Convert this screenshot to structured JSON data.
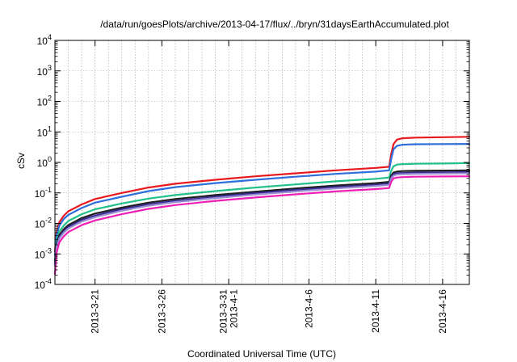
{
  "chart_data": {
    "type": "line",
    "title": "/data/run/goesPlots/archive/2013-04-17/flux/../bryn/31daysEarthAccumulated.plot",
    "xlabel": "Coordinated Universal Time (UTC)",
    "ylabel": "cSv",
    "y_scale": "log",
    "xlim": [
      "2013-03-18",
      "2013-04-18"
    ],
    "ylim": [
      0.0001,
      10000
    ],
    "grid": true,
    "legend": "none",
    "x_ticks": [
      {
        "date": "2013-03-21",
        "lines": [
          "2013-3-21"
        ]
      },
      {
        "date": "2013-03-26",
        "lines": [
          "2013-3-26"
        ]
      },
      {
        "date": "2013-03-31",
        "lines": [
          "2013-3-31",
          "2013-4-1"
        ]
      },
      {
        "date": "2013-04-06",
        "lines": [
          "2013-4-6"
        ]
      },
      {
        "date": "2013-04-11",
        "lines": [
          "2013-4-11"
        ]
      },
      {
        "date": "2013-04-16",
        "lines": [
          "2013-4-16"
        ]
      }
    ],
    "y_ticks": [
      {
        "value": 0.0001,
        "base": "10",
        "exp": "-4"
      },
      {
        "value": 0.001,
        "base": "10",
        "exp": "-3"
      },
      {
        "value": 0.01,
        "base": "10",
        "exp": "-2"
      },
      {
        "value": 0.1,
        "base": "10",
        "exp": "-1"
      },
      {
        "value": 1,
        "base": "10",
        "exp": "0"
      },
      {
        "value": 10,
        "base": "10",
        "exp": "1"
      },
      {
        "value": 100,
        "base": "10",
        "exp": "2"
      },
      {
        "value": 1000,
        "base": "10",
        "exp": "3"
      },
      {
        "value": 10000,
        "base": "10",
        "exp": "4"
      }
    ],
    "series": [
      {
        "color": "#e8191e",
        "points": [
          [
            "2013-03-18",
            0.0012
          ],
          [
            "2013-03-18T03:00",
            0.0055
          ],
          [
            "2013-03-18T08:00",
            0.011
          ],
          [
            "2013-03-18T16:00",
            0.018
          ],
          [
            "2013-03-19",
            0.025
          ],
          [
            "2013-03-20",
            0.042
          ],
          [
            "2013-03-21",
            0.063
          ],
          [
            "2013-03-23",
            0.1
          ],
          [
            "2013-03-25",
            0.15
          ],
          [
            "2013-03-27",
            0.2
          ],
          [
            "2013-03-30",
            0.27
          ],
          [
            "2013-04-02",
            0.35
          ],
          [
            "2013-04-05",
            0.44
          ],
          [
            "2013-04-08",
            0.55
          ],
          [
            "2013-04-11",
            0.66
          ],
          [
            "2013-04-12",
            0.72
          ],
          [
            "2013-04-12T04:00",
            2.0
          ],
          [
            "2013-04-12T08:00",
            4.0
          ],
          [
            "2013-04-12T14:00",
            5.6
          ],
          [
            "2013-04-13",
            6.2
          ],
          [
            "2013-04-14",
            6.5
          ],
          [
            "2013-04-16",
            6.7
          ],
          [
            "2013-04-18",
            6.9
          ]
        ]
      },
      {
        "color": "#2e6fdc",
        "points": [
          [
            "2013-03-18",
            0.0009
          ],
          [
            "2013-03-18T03:00",
            0.0042
          ],
          [
            "2013-03-18T08:00",
            0.0085
          ],
          [
            "2013-03-18T16:00",
            0.014
          ],
          [
            "2013-03-19",
            0.019
          ],
          [
            "2013-03-20",
            0.032
          ],
          [
            "2013-03-21",
            0.048
          ],
          [
            "2013-03-23",
            0.075
          ],
          [
            "2013-03-25",
            0.115
          ],
          [
            "2013-03-27",
            0.155
          ],
          [
            "2013-03-30",
            0.21
          ],
          [
            "2013-04-02",
            0.27
          ],
          [
            "2013-04-05",
            0.34
          ],
          [
            "2013-04-08",
            0.42
          ],
          [
            "2013-04-11",
            0.5
          ],
          [
            "2013-04-12",
            0.55
          ],
          [
            "2013-04-12T04:00",
            1.4
          ],
          [
            "2013-04-12T08:00",
            2.7
          ],
          [
            "2013-04-12T14:00",
            3.5
          ],
          [
            "2013-04-13",
            3.8
          ],
          [
            "2013-04-14",
            3.95
          ],
          [
            "2013-04-16",
            4.0
          ],
          [
            "2013-04-18",
            4.05
          ]
        ]
      },
      {
        "color": "#22c08a",
        "points": [
          [
            "2013-03-18",
            0.0006
          ],
          [
            "2013-03-18T03:00",
            0.0028
          ],
          [
            "2013-03-18T08:00",
            0.0055
          ],
          [
            "2013-03-18T16:00",
            0.0085
          ],
          [
            "2013-03-19",
            0.012
          ],
          [
            "2013-03-20",
            0.02
          ],
          [
            "2013-03-21",
            0.029
          ],
          [
            "2013-03-23",
            0.045
          ],
          [
            "2013-03-25",
            0.065
          ],
          [
            "2013-03-27",
            0.085
          ],
          [
            "2013-03-30",
            0.115
          ],
          [
            "2013-04-02",
            0.15
          ],
          [
            "2013-04-05",
            0.19
          ],
          [
            "2013-04-08",
            0.24
          ],
          [
            "2013-04-11",
            0.29
          ],
          [
            "2013-04-12",
            0.32
          ],
          [
            "2013-04-12T04:00",
            0.55
          ],
          [
            "2013-04-12T08:00",
            0.75
          ],
          [
            "2013-04-12T14:00",
            0.85
          ],
          [
            "2013-04-13",
            0.88
          ],
          [
            "2013-04-14",
            0.9
          ],
          [
            "2013-04-16",
            0.92
          ],
          [
            "2013-04-18",
            0.95
          ]
        ]
      },
      {
        "color": "#1e1e1e",
        "points": [
          [
            "2013-03-18",
            0.0005
          ],
          [
            "2013-03-18T03:00",
            0.0022
          ],
          [
            "2013-03-18T08:00",
            0.0042
          ],
          [
            "2013-03-18T16:00",
            0.0065
          ],
          [
            "2013-03-19",
            0.0088
          ],
          [
            "2013-03-20",
            0.015
          ],
          [
            "2013-03-21",
            0.021
          ],
          [
            "2013-03-23",
            0.033
          ],
          [
            "2013-03-25",
            0.048
          ],
          [
            "2013-03-27",
            0.063
          ],
          [
            "2013-03-30",
            0.085
          ],
          [
            "2013-04-02",
            0.11
          ],
          [
            "2013-04-05",
            0.14
          ],
          [
            "2013-04-08",
            0.175
          ],
          [
            "2013-04-11",
            0.21
          ],
          [
            "2013-04-12",
            0.23
          ],
          [
            "2013-04-12T04:00",
            0.38
          ],
          [
            "2013-04-12T08:00",
            0.47
          ],
          [
            "2013-04-12T14:00",
            0.5
          ],
          [
            "2013-04-13",
            0.52
          ],
          [
            "2013-04-14",
            0.53
          ],
          [
            "2013-04-16",
            0.54
          ],
          [
            "2013-04-18",
            0.55
          ]
        ]
      },
      {
        "color": "#3a2a98",
        "points": [
          [
            "2013-03-18",
            0.00045
          ],
          [
            "2013-03-18T03:00",
            0.0019
          ],
          [
            "2013-03-18T08:00",
            0.0036
          ],
          [
            "2013-03-18T16:00",
            0.0056
          ],
          [
            "2013-03-19",
            0.0076
          ],
          [
            "2013-03-20",
            0.013
          ],
          [
            "2013-03-21",
            0.018
          ],
          [
            "2013-03-23",
            0.029
          ],
          [
            "2013-03-25",
            0.042
          ],
          [
            "2013-03-27",
            0.055
          ],
          [
            "2013-03-30",
            0.075
          ],
          [
            "2013-04-02",
            0.098
          ],
          [
            "2013-04-05",
            0.125
          ],
          [
            "2013-04-08",
            0.155
          ],
          [
            "2013-04-11",
            0.185
          ],
          [
            "2013-04-12",
            0.2
          ],
          [
            "2013-04-12T04:00",
            0.33
          ],
          [
            "2013-04-12T08:00",
            0.41
          ],
          [
            "2013-04-12T14:00",
            0.44
          ],
          [
            "2013-04-13",
            0.45
          ],
          [
            "2013-04-14",
            0.46
          ],
          [
            "2013-04-16",
            0.47
          ],
          [
            "2013-04-18",
            0.48
          ]
        ]
      },
      {
        "color": "#9a8fd0",
        "points": [
          [
            "2013-03-18",
            0.0004
          ],
          [
            "2013-03-18T03:00",
            0.0017
          ],
          [
            "2013-03-18T08:00",
            0.0032
          ],
          [
            "2013-03-18T16:00",
            0.005
          ],
          [
            "2013-03-19",
            0.0068
          ],
          [
            "2013-03-20",
            0.0115
          ],
          [
            "2013-03-21",
            0.016
          ],
          [
            "2013-03-23",
            0.026
          ],
          [
            "2013-03-25",
            0.038
          ],
          [
            "2013-03-27",
            0.05
          ],
          [
            "2013-03-30",
            0.068
          ],
          [
            "2013-04-02",
            0.088
          ],
          [
            "2013-04-05",
            0.112
          ],
          [
            "2013-04-08",
            0.14
          ],
          [
            "2013-04-11",
            0.168
          ],
          [
            "2013-04-12",
            0.182
          ],
          [
            "2013-04-12T04:00",
            0.3
          ],
          [
            "2013-04-12T08:00",
            0.37
          ],
          [
            "2013-04-12T14:00",
            0.4
          ],
          [
            "2013-04-13",
            0.41
          ],
          [
            "2013-04-14",
            0.42
          ],
          [
            "2013-04-16",
            0.43
          ],
          [
            "2013-04-18",
            0.44
          ]
        ]
      },
      {
        "color": "#ee1fb4",
        "points": [
          [
            "2013-03-18",
            0.00022
          ],
          [
            "2013-03-18T03:00",
            0.0011
          ],
          [
            "2013-03-18T08:00",
            0.0024
          ],
          [
            "2013-03-18T16:00",
            0.0038
          ],
          [
            "2013-03-19",
            0.0052
          ],
          [
            "2013-03-20",
            0.0088
          ],
          [
            "2013-03-21",
            0.0125
          ],
          [
            "2013-03-23",
            0.02
          ],
          [
            "2013-03-25",
            0.03
          ],
          [
            "2013-03-27",
            0.04
          ],
          [
            "2013-03-30",
            0.055
          ],
          [
            "2013-04-02",
            0.071
          ],
          [
            "2013-04-05",
            0.09
          ],
          [
            "2013-04-08",
            0.112
          ],
          [
            "2013-04-11",
            0.134
          ],
          [
            "2013-04-12",
            0.145
          ],
          [
            "2013-04-12T04:00",
            0.24
          ],
          [
            "2013-04-12T08:00",
            0.3
          ],
          [
            "2013-04-12T14:00",
            0.32
          ],
          [
            "2013-04-13",
            0.33
          ],
          [
            "2013-04-14",
            0.34
          ],
          [
            "2013-04-16",
            0.345
          ],
          [
            "2013-04-18",
            0.35
          ]
        ]
      }
    ]
  }
}
